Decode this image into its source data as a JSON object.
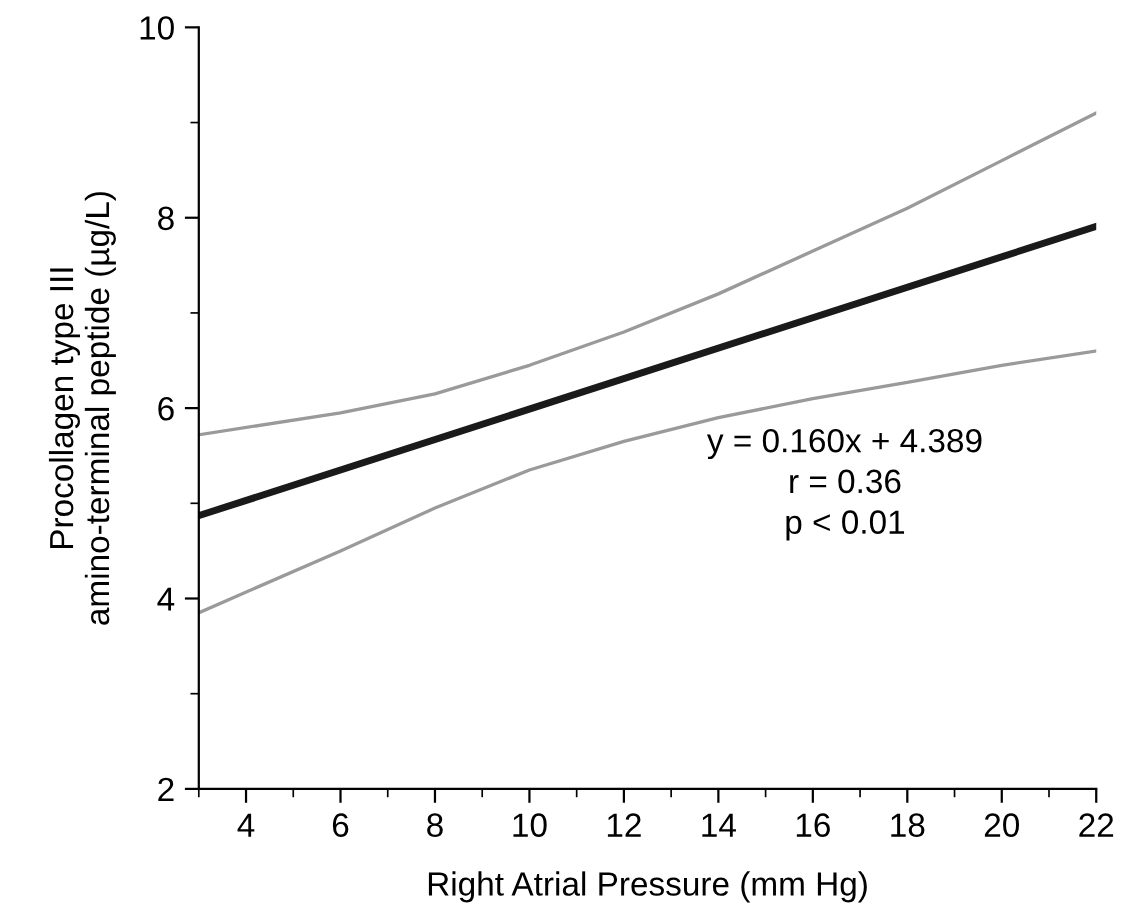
{
  "chart_data": {
    "type": "line",
    "xlabel": "Right Atrial Pressure (mm Hg)",
    "ylabel": "Procollagen type III\namino-terminal peptide (µg/L)",
    "xlim": [
      3,
      22
    ],
    "ylim": [
      2,
      10
    ],
    "xticks": [
      {
        "value": 3,
        "label": null
      },
      4,
      {
        "value": 5,
        "label": null
      },
      6,
      {
        "value": 7,
        "label": null
      },
      8,
      {
        "value": 9,
        "label": null
      },
      10,
      {
        "value": 11,
        "label": null
      },
      12,
      {
        "value": 13,
        "label": null
      },
      14,
      {
        "value": 15,
        "label": null
      },
      16,
      {
        "value": 17,
        "label": null
      },
      18,
      {
        "value": 19,
        "label": null
      },
      20,
      {
        "value": 21,
        "label": null
      },
      22
    ],
    "yticks": [
      2,
      {
        "value": 3,
        "label": null
      },
      4,
      {
        "value": 5,
        "label": null
      },
      6,
      {
        "value": 7,
        "label": null
      },
      8,
      {
        "value": 9,
        "label": null
      },
      10
    ],
    "grid": false,
    "legend": false,
    "marker": "none",
    "line_style": "solid",
    "series": [
      {
        "color": "#1a1a1a",
        "x": [
          3,
          22
        ],
        "values": [
          4.87,
          7.91
        ]
      },
      {
        "color": "#9a9a9a",
        "x": [
          3,
          6,
          8,
          10,
          12,
          14,
          16,
          18,
          20,
          22
        ],
        "values": [
          5.72,
          5.95,
          6.15,
          6.45,
          6.8,
          7.2,
          7.65,
          8.1,
          8.6,
          9.1
        ]
      },
      {
        "color": "#9a9a9a",
        "x": [
          3,
          6,
          8,
          10,
          12,
          14,
          16,
          18,
          20,
          22
        ],
        "values": [
          3.85,
          4.5,
          4.95,
          5.35,
          5.65,
          5.9,
          6.1,
          6.27,
          6.45,
          6.6
        ]
      }
    ],
    "annotations": [
      "y = 0.160x + 4.389\nr = 0.36\np < 0.01"
    ]
  }
}
